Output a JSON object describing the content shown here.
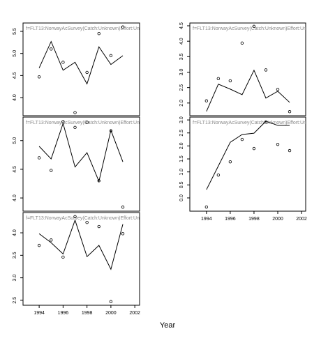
{
  "xlabel": "Year",
  "chart_data": [
    {
      "type": "line",
      "title": "f=FLT13:NorwayAcSurvey(Catch:Unknown)Effort:Un",
      "x": [
        1994,
        1995,
        1996,
        1997,
        1998,
        1999,
        2000,
        2001
      ],
      "xlim": [
        1992.65,
        2002.4
      ],
      "ylim": [
        3.59,
        5.69
      ],
      "yticks": [
        {
          "value": 4,
          "label": "4.0"
        },
        4.5,
        {
          "value": 5,
          "label": "5.0"
        },
        5.5
      ],
      "series": [
        {
          "style": "points",
          "color": "#000000",
          "values": [
            4.47,
            5.1,
            4.8,
            3.66,
            4.57,
            5.45,
            4.95,
            5.6
          ]
        },
        {
          "style": "line",
          "color": "#000000",
          "values": [
            4.67,
            5.27,
            4.62,
            4.8,
            4.31,
            5.15,
            4.75,
            4.95
          ]
        }
      ]
    },
    {
      "type": "line",
      "title": "f=FLT13:NorwayAcSurvey(Catch:Unknown)Effort:Un",
      "x": [
        1994,
        1995,
        1996,
        1997,
        1998,
        1999,
        2000,
        2001
      ],
      "xlim": [
        1992.65,
        2002.4
      ],
      "ylim": [
        3.77,
        5.41
      ],
      "yticks": [
        {
          "value": 4,
          "label": "4.0"
        },
        4.5,
        {
          "value": 5,
          "label": "5.0"
        }
      ],
      "series": [
        {
          "style": "points",
          "color": "#000000",
          "values": [
            4.7,
            4.48,
            5.33,
            5.23,
            5.32,
            4.3,
            5.17,
            3.84
          ]
        },
        {
          "style": "line",
          "color": "#000000",
          "values": [
            4.9,
            4.68,
            5.3,
            4.54,
            4.79,
            4.29,
            5.18,
            4.63
          ]
        }
      ]
    },
    {
      "type": "line",
      "title": "f=FLT13:NorwayAcSurvey(Catch:Unknown)Effort:Un",
      "x": [
        1994,
        1995,
        1996,
        1997,
        1998,
        1999,
        2000,
        2001
      ],
      "xlim": [
        1992.65,
        2002.4
      ],
      "ylim": [
        2.39,
        4.45
      ],
      "xticks": [
        1994,
        1996,
        1998,
        2000,
        2002
      ],
      "yticks": [
        2.5,
        {
          "value": 3,
          "label": "3.0"
        },
        3.5,
        {
          "value": 4,
          "label": "4.0"
        }
      ],
      "series": [
        {
          "style": "points",
          "color": "#000000",
          "values": [
            3.72,
            3.84,
            3.46,
            4.36,
            4.23,
            4.14,
            2.47,
            3.98
          ]
        },
        {
          "style": "line",
          "color": "#000000",
          "values": [
            3.98,
            3.78,
            3.53,
            4.28,
            3.47,
            3.72,
            3.19,
            4.19
          ]
        }
      ]
    },
    {
      "type": "line",
      "title": "f=FLT13:NorwayAcSurvey(Catch:Unknown)Effort:Un",
      "x": [
        1994,
        1995,
        1996,
        1997,
        1998,
        1999,
        2000,
        2001
      ],
      "xlim": [
        1992.6,
        2002.35
      ],
      "ylim": [
        1.59,
        4.59
      ],
      "yticks": [
        {
          "value": 2,
          "label": "2.0"
        },
        2.5,
        {
          "value": 3,
          "label": "3.0"
        },
        3.5,
        {
          "value": 4,
          "label": "4.0"
        },
        4.5
      ],
      "series": [
        {
          "style": "points",
          "color": "#000000",
          "values": [
            2.07,
            2.79,
            2.72,
            3.94,
            4.48,
            3.07,
            2.44,
            1.72
          ]
        },
        {
          "style": "line",
          "color": "#000000",
          "values": [
            1.73,
            2.61,
            2.45,
            2.27,
            3.06,
            2.16,
            2.38,
            2.02
          ]
        }
      ]
    },
    {
      "type": "line",
      "title": "f=FLT13:NorwayAcSurvey(Catch:Unknown)Effort:Un",
      "x": [
        1994,
        1995,
        1996,
        1997,
        1998,
        1999,
        2000,
        2001
      ],
      "xlim": [
        1992.6,
        2002.35
      ],
      "ylim": [
        -0.51,
        3.11
      ],
      "xticks": [
        1994,
        1996,
        1998,
        2000,
        2002
      ],
      "yticks": [
        {
          "value": 0,
          "label": "0.0"
        },
        0.5,
        {
          "value": 1,
          "label": "1.0"
        },
        1.5,
        {
          "value": 2,
          "label": "2.0"
        },
        2.5,
        {
          "value": 3,
          "label": "3.0"
        }
      ],
      "series": [
        {
          "style": "points",
          "color": "#000000",
          "values": [
            -0.35,
            0.88,
            1.39,
            2.25,
            1.9,
            2.92,
            2.06,
            1.82
          ]
        },
        {
          "style": "line",
          "color": "#000000",
          "values": [
            0.32,
            1.23,
            2.14,
            2.44,
            2.49,
            2.95,
            2.79,
            2.79
          ]
        }
      ]
    }
  ]
}
